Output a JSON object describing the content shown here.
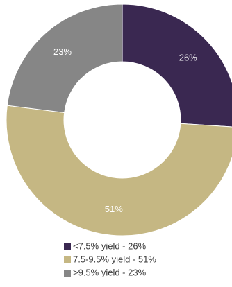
{
  "chart_data": {
    "type": "pie",
    "donut": true,
    "categories": [
      "<7.5% yield",
      "7.5-9.5% yield",
      ">9.5% yield"
    ],
    "values": [
      26,
      51,
      23
    ],
    "unit": "%",
    "slice_labels": [
      "26%",
      "51%",
      "23%"
    ],
    "legend_labels": [
      "<7.5% yield - 26%",
      "7.5-9.5% yield - 51%",
      ">9.5% yield - 23%"
    ],
    "colors": [
      "#3a2851",
      "#c5b783",
      "#868686"
    ],
    "start_angle_deg": 0,
    "direction": "clockwise",
    "legend_position": "bottom",
    "title": ""
  }
}
